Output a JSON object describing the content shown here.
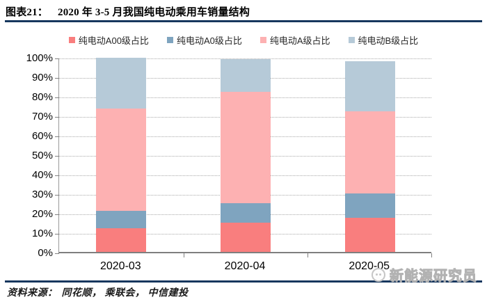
{
  "header": {
    "title_label": "图表21：",
    "title_text": "2020 年 3-5 月我国纯电动乘用车销量结构"
  },
  "colors": {
    "rule_navy": "#17375e",
    "grid": "#a9a9a9",
    "axis": "#7f7f7f",
    "series_a00": "#f97e7e",
    "series_a0": "#7fa4bf",
    "series_a": "#fdb1b2",
    "series_b": "#b6cad8"
  },
  "chart_data": {
    "type": "bar",
    "stacked": true,
    "stacked_100_percent": true,
    "grid": true,
    "legend_position": "top",
    "title": "2020 年 3-5 月我国纯电动乘用车销量结构",
    "xlabel": "",
    "ylabel": "",
    "ylim": [
      0,
      100
    ],
    "y_tick_step": 10,
    "y_tick_labels": [
      "0%",
      "10%",
      "20%",
      "30%",
      "40%",
      "50%",
      "60%",
      "70%",
      "80%",
      "90%",
      "100%"
    ],
    "categories": [
      "2020-03",
      "2020-04",
      "2020-05"
    ],
    "series": [
      {
        "name": "纯电动A00级占比",
        "color": "#f97e7e",
        "values": [
          12,
          15,
          17.5
        ]
      },
      {
        "name": "纯电动A0级占比",
        "color": "#7fa4bf",
        "values": [
          9,
          10,
          12.5
        ]
      },
      {
        "name": "纯电动A级占比",
        "color": "#fdb1b2",
        "values": [
          52.5,
          57,
          42
        ]
      },
      {
        "name": "纯电动B级占比",
        "color": "#b6cad8",
        "values": [
          26,
          17,
          26
        ]
      }
    ]
  },
  "footer": {
    "source_label": "资料来源：",
    "sources": "同花顺， 乘联会， 中信建投",
    "watermark": "新能源研究员"
  }
}
